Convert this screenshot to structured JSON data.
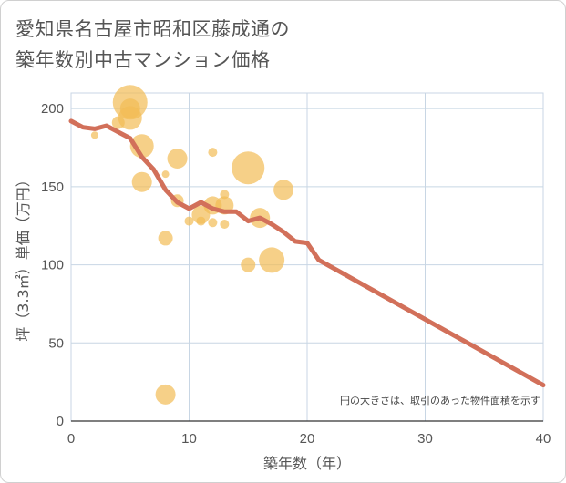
{
  "header": {
    "title": "愛知県名古屋市昭和区藤成通の\n築年数別中古マンション価格"
  },
  "chart_data": {
    "type": "scatter",
    "xlabel": "築年数（年）",
    "ylabel": "坪（3.3㎡）単価（万円）",
    "xlim": [
      0,
      40
    ],
    "ylim": [
      0,
      210
    ],
    "xticks": [
      "0",
      "10",
      "20",
      "30",
      "40"
    ],
    "yticks": [
      "0",
      "50",
      "100",
      "150",
      "200"
    ],
    "grid": true,
    "note": "円の大きさは、取引のあった物件面積を示す",
    "colors": {
      "bubble": "#f2bc55",
      "line": "#d2705a",
      "grid": "#c8d6e4"
    },
    "series": [
      {
        "type": "scatter",
        "points": [
          {
            "x": 2,
            "y": 183,
            "r": 4
          },
          {
            "x": 4,
            "y": 191,
            "r": 7
          },
          {
            "x": 5,
            "y": 204,
            "r": 19
          },
          {
            "x": 5,
            "y": 200,
            "r": 11
          },
          {
            "x": 5,
            "y": 194,
            "r": 13
          },
          {
            "x": 6,
            "y": 176,
            "r": 13
          },
          {
            "x": 6,
            "y": 153,
            "r": 11
          },
          {
            "x": 8,
            "y": 117,
            "r": 8
          },
          {
            "x": 8,
            "y": 17,
            "r": 11
          },
          {
            "x": 8,
            "y": 158,
            "r": 4
          },
          {
            "x": 9,
            "y": 168,
            "r": 11
          },
          {
            "x": 9,
            "y": 141,
            "r": 7
          },
          {
            "x": 10,
            "y": 128,
            "r": 5
          },
          {
            "x": 11,
            "y": 132,
            "r": 10
          },
          {
            "x": 11,
            "y": 128,
            "r": 5
          },
          {
            "x": 12,
            "y": 172,
            "r": 5
          },
          {
            "x": 12,
            "y": 138,
            "r": 10
          },
          {
            "x": 12,
            "y": 127,
            "r": 5
          },
          {
            "x": 13,
            "y": 145,
            "r": 5
          },
          {
            "x": 13,
            "y": 138,
            "r": 10
          },
          {
            "x": 13,
            "y": 126,
            "r": 5
          },
          {
            "x": 15,
            "y": 162,
            "r": 18
          },
          {
            "x": 15,
            "y": 100,
            "r": 8
          },
          {
            "x": 16,
            "y": 130,
            "r": 11
          },
          {
            "x": 17,
            "y": 103,
            "r": 14
          },
          {
            "x": 18,
            "y": 148,
            "r": 11
          }
        ]
      },
      {
        "type": "line",
        "x": [
          0,
          1,
          2,
          3,
          4,
          5,
          6,
          7,
          8,
          9,
          10,
          11,
          12,
          13,
          14,
          15,
          16,
          17,
          18,
          19,
          20,
          21,
          40
        ],
        "y": [
          192,
          188,
          187,
          189,
          185,
          181,
          169,
          161,
          148,
          140,
          136,
          140,
          136,
          134,
          134,
          128,
          130,
          126,
          121,
          115,
          114,
          103,
          23
        ]
      }
    ]
  }
}
